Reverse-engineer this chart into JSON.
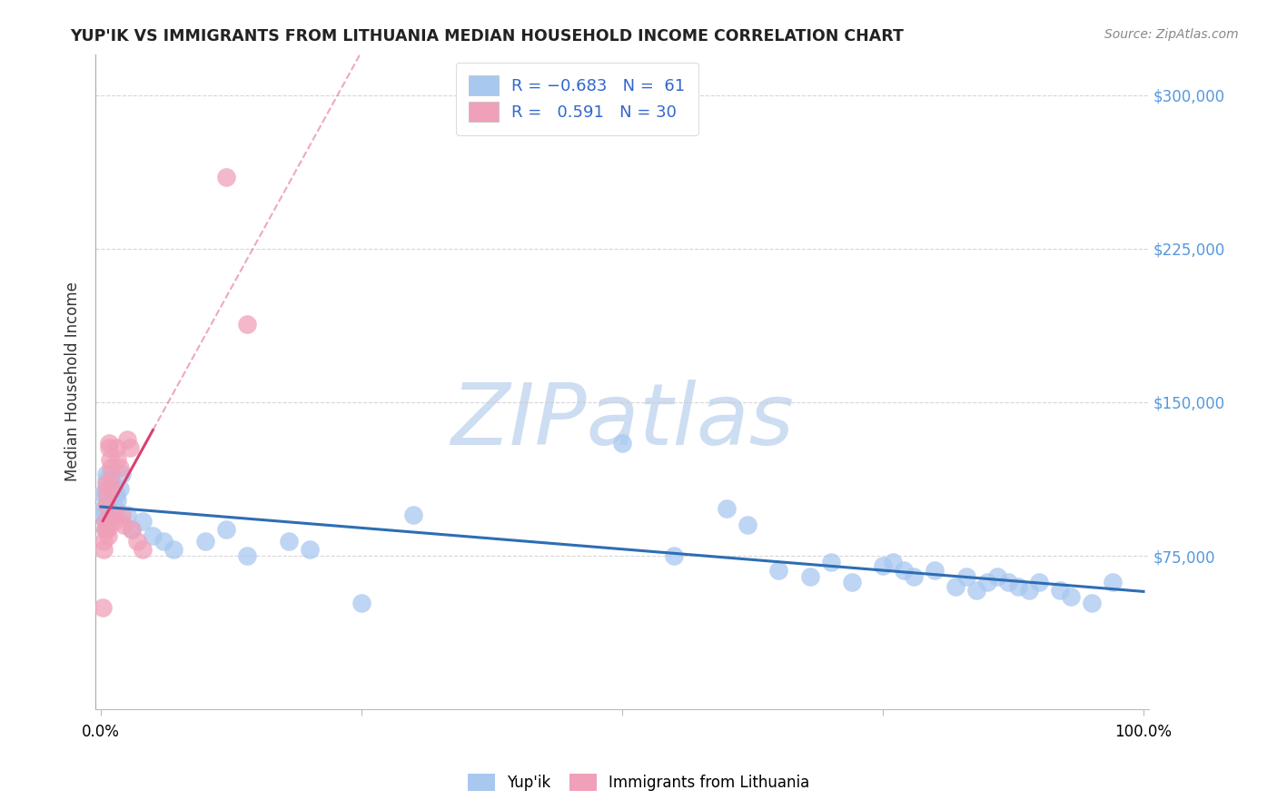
{
  "title": "YUP'IK VS IMMIGRANTS FROM LITHUANIA MEDIAN HOUSEHOLD INCOME CORRELATION CHART",
  "source": "Source: ZipAtlas.com",
  "ylabel": "Median Household Income",
  "ytick_positions": [
    75000,
    150000,
    225000,
    300000
  ],
  "ytick_labels": [
    "$75,000",
    "$150,000",
    "$225,000",
    "$300,000"
  ],
  "blue_color": "#A8C8F0",
  "pink_color": "#F0A0B8",
  "blue_line_color": "#2E6DB4",
  "pink_line_color": "#D94070",
  "watermark_color": "#C5D8F0",
  "blue_x": [
    0.002,
    0.003,
    0.003,
    0.004,
    0.004,
    0.005,
    0.005,
    0.005,
    0.006,
    0.006,
    0.007,
    0.008,
    0.008,
    0.009,
    0.01,
    0.01,
    0.012,
    0.014,
    0.015,
    0.016,
    0.018,
    0.02,
    0.025,
    0.03,
    0.04,
    0.05,
    0.06,
    0.07,
    0.1,
    0.12,
    0.14,
    0.18,
    0.2,
    0.25,
    0.3,
    0.5,
    0.55,
    0.6,
    0.62,
    0.65,
    0.68,
    0.7,
    0.72,
    0.75,
    0.76,
    0.77,
    0.78,
    0.8,
    0.82,
    0.83,
    0.84,
    0.85,
    0.86,
    0.87,
    0.88,
    0.89,
    0.9,
    0.92,
    0.93,
    0.95,
    0.97
  ],
  "blue_y": [
    105000,
    98000,
    95000,
    92000,
    88000,
    115000,
    112000,
    108000,
    105000,
    102000,
    98000,
    95000,
    100000,
    92000,
    115000,
    112000,
    108000,
    98000,
    105000,
    102000,
    108000,
    115000,
    95000,
    88000,
    92000,
    85000,
    82000,
    78000,
    82000,
    88000,
    75000,
    82000,
    78000,
    52000,
    95000,
    130000,
    75000,
    98000,
    90000,
    68000,
    65000,
    72000,
    62000,
    70000,
    72000,
    68000,
    65000,
    68000,
    60000,
    65000,
    58000,
    62000,
    65000,
    62000,
    60000,
    58000,
    62000,
    58000,
    55000,
    52000,
    62000
  ],
  "pink_x": [
    0.002,
    0.003,
    0.003,
    0.004,
    0.004,
    0.005,
    0.005,
    0.005,
    0.006,
    0.007,
    0.008,
    0.008,
    0.009,
    0.01,
    0.01,
    0.01,
    0.012,
    0.013,
    0.015,
    0.016,
    0.018,
    0.02,
    0.022,
    0.025,
    0.028,
    0.03,
    0.035,
    0.04,
    0.12,
    0.14
  ],
  "pink_y": [
    50000,
    78000,
    82000,
    88000,
    92000,
    100000,
    105000,
    110000,
    88000,
    85000,
    130000,
    128000,
    122000,
    118000,
    112000,
    108000,
    95000,
    92000,
    128000,
    122000,
    118000,
    95000,
    90000,
    132000,
    128000,
    88000,
    82000,
    78000,
    260000,
    188000
  ],
  "ylim_min": 0,
  "ylim_max": 320000,
  "xlim_min": -0.005,
  "xlim_max": 1.005
}
